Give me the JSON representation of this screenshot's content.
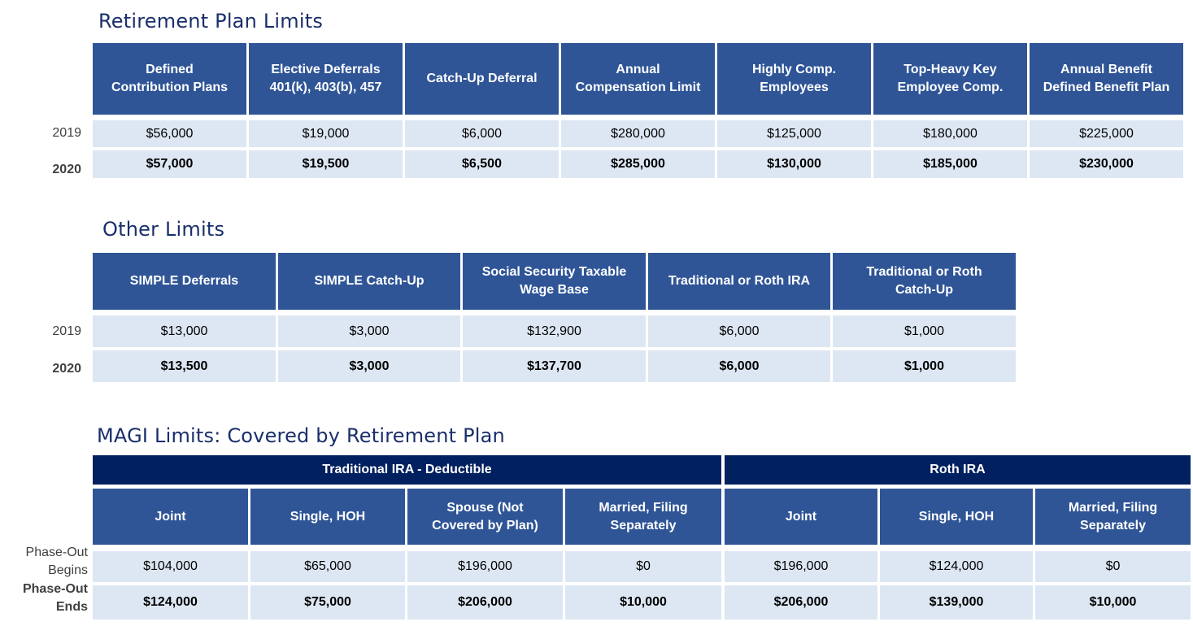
{
  "retirement": {
    "title": "Retirement Plan Limits",
    "headers": [
      "Defined\nContribution Plans",
      "Elective Deferrals\n401(k), 403(b), 457",
      "Catch-Up Deferral",
      "Annual\nCompensation Limit",
      "Highly Comp.\nEmployees",
      "Top-Heavy Key\nEmployee Comp.",
      "Annual Benefit\nDefined Benefit Plan"
    ],
    "row_labels": [
      "2019",
      "2020"
    ],
    "rows": [
      [
        "$56,000",
        "$19,000",
        "$6,000",
        "$280,000",
        "$125,000",
        "$180,000",
        "$225,000"
      ],
      [
        "$57,000",
        "$19,500",
        "$6,500",
        "$285,000",
        "$130,000",
        "$185,000",
        "$230,000"
      ]
    ]
  },
  "other": {
    "title": "Other Limits",
    "headers": [
      "SIMPLE Deferrals",
      "SIMPLE Catch-Up",
      "Social Security Taxable\nWage Base",
      "Traditional or Roth IRA",
      "Traditional or Roth\nCatch-Up"
    ],
    "row_labels": [
      "2019",
      "2020"
    ],
    "rows": [
      [
        "$13,000",
        "$3,000",
        "$132,900",
        "$6,000",
        "$1,000"
      ],
      [
        "$13,500",
        "$3,000",
        "$137,700",
        "$6,000",
        "$1,000"
      ]
    ]
  },
  "magi": {
    "title": "MAGI Limits: Covered by Retirement Plan",
    "groups": [
      "Traditional IRA - Deductible",
      "Roth IRA"
    ],
    "headers": [
      "Joint",
      "Single, HOH",
      "Spouse (Not\nCovered by Plan)",
      "Married, Filing\nSeparately",
      "Joint",
      "Single, HOH",
      "Married, Filing\nSeparately"
    ],
    "row_labels": [
      "Phase-Out\nBegins",
      "Phase-Out\nEnds"
    ],
    "rows": [
      [
        "$104,000",
        "$65,000",
        "$196,000",
        "$0",
        "$196,000",
        "$124,000",
        "$0"
      ],
      [
        "$124,000",
        "$75,000",
        "$206,000",
        "$10,000",
        "$206,000",
        "$139,000",
        "$10,000"
      ]
    ]
  }
}
